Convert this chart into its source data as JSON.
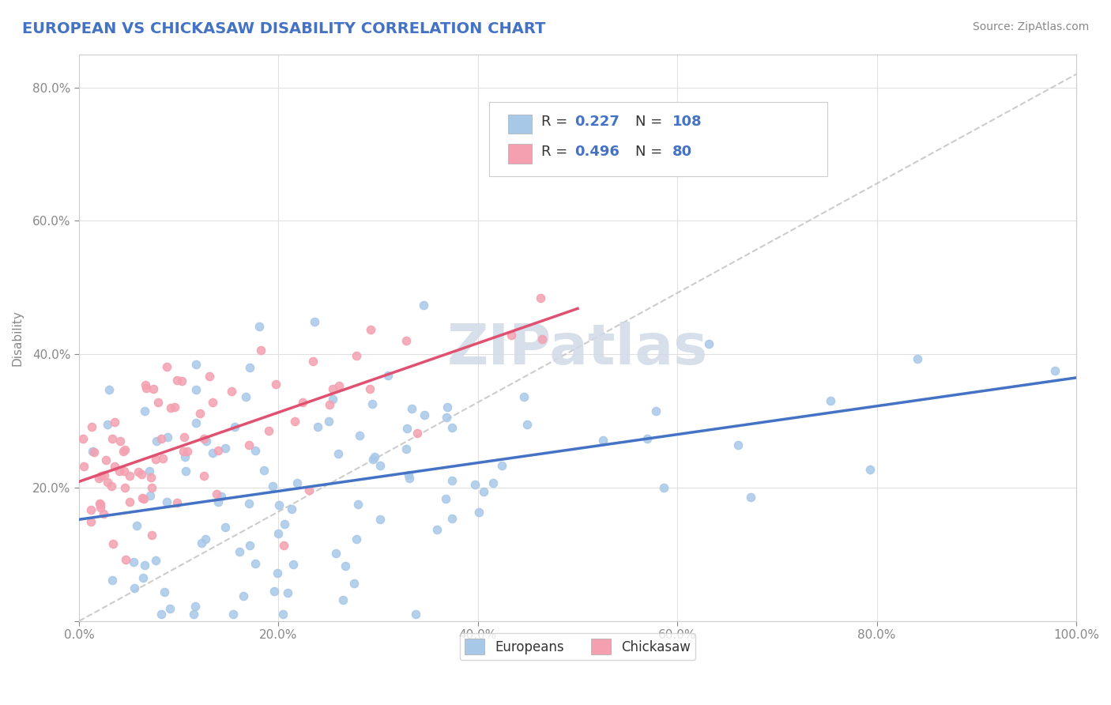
{
  "title": "EUROPEAN VS CHICKASAW DISABILITY CORRELATION CHART",
  "source": "Source: ZipAtlas.com",
  "ylabel": "Disability",
  "xlim": [
    0.0,
    1.0
  ],
  "ylim": [
    0.0,
    0.85
  ],
  "xticks": [
    0.0,
    0.2,
    0.4,
    0.6,
    0.8,
    1.0
  ],
  "xtick_labels": [
    "0.0%",
    "20.0%",
    "40.0%",
    "60.0%",
    "80.0%",
    "100.0%"
  ],
  "yticks": [
    0.0,
    0.2,
    0.4,
    0.6,
    0.8
  ],
  "ytick_labels": [
    "",
    "20.0%",
    "40.0%",
    "60.0%",
    "80.0%"
  ],
  "european_color": "#a8c8e8",
  "chickasaw_color": "#f4a0b0",
  "european_line_color": "#4472c4",
  "chickasaw_line_color": "#e05070",
  "diagonal_line_color": "#c0c0c0",
  "watermark_color": "#d0dae8",
  "legend_eu_R": "0.227",
  "legend_eu_N": "108",
  "legend_ch_R": "0.496",
  "legend_ch_N": "80",
  "title_color": "#4472c4",
  "axis_color": "#888888",
  "grid_color": "#e0e0e0",
  "european_seed": 42,
  "chickasaw_seed": 99,
  "eu_N": 108,
  "ch_N": 80,
  "background_color": "#ffffff"
}
